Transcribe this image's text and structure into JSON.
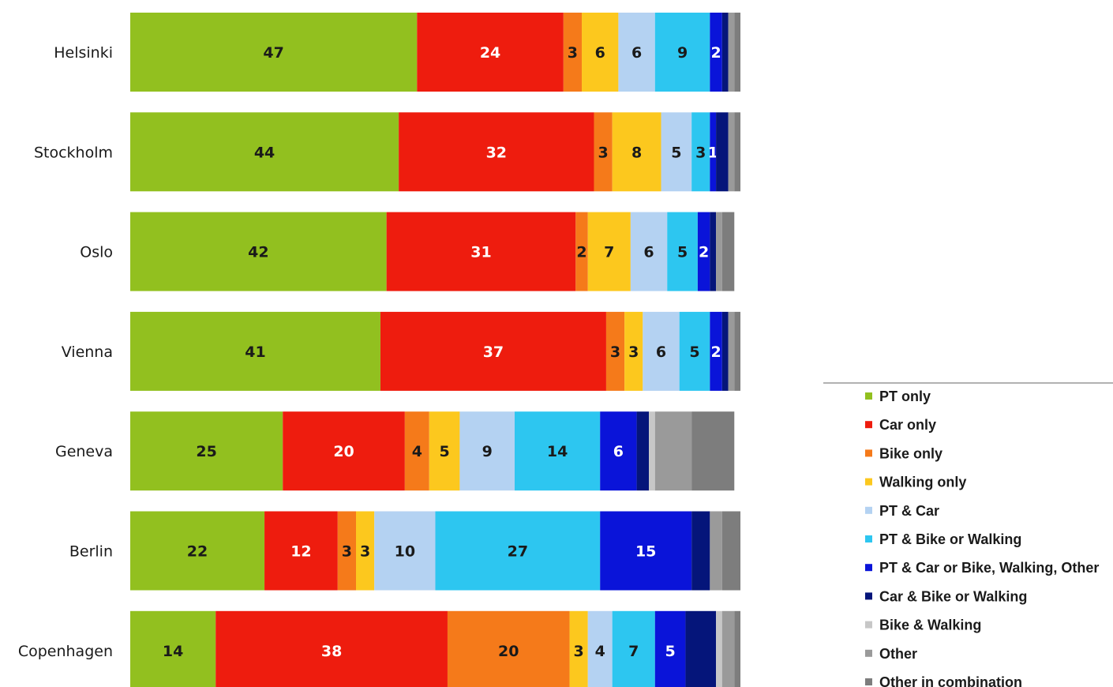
{
  "chart_data": {
    "type": "bar",
    "orientation": "horizontal",
    "stacked": true,
    "title": "",
    "xlabel": "",
    "ylabel": "",
    "xlim": [
      0,
      100
    ],
    "grid": false,
    "legend_position": "bottom-right",
    "categories": [
      "Helsinki",
      "Stockholm",
      "Oslo",
      "Vienna",
      "Geneva",
      "Berlin",
      "Copenhagen"
    ],
    "series": [
      {
        "name": "PT only",
        "color": "#92c01f",
        "values": [
          47,
          44,
          42,
          41,
          25,
          22,
          14
        ],
        "label_color": "#1a1a1a"
      },
      {
        "name": "Car only",
        "color": "#ee1c0e",
        "values": [
          24,
          32,
          31,
          37,
          20,
          12,
          38
        ],
        "label_color": "#ffffff"
      },
      {
        "name": "Bike only",
        "color": "#f57a1a",
        "values": [
          3,
          3,
          2,
          3,
          4,
          3,
          20
        ],
        "label_color": "#1a1a1a"
      },
      {
        "name": "Walking only",
        "color": "#fcc81e",
        "values": [
          6,
          8,
          7,
          3,
          5,
          3,
          3
        ],
        "label_color": "#1a1a1a"
      },
      {
        "name": "PT & Car",
        "color": "#b4d2f2",
        "values": [
          6,
          5,
          6,
          6,
          9,
          10,
          4
        ],
        "label_color": "#1a1a1a"
      },
      {
        "name": "PT & Bike or Walking",
        "color": "#2dc6f0",
        "values": [
          9,
          3,
          5,
          5,
          14,
          27,
          7
        ],
        "label_color": "#1a1a1a"
      },
      {
        "name": "PT & Car or Bike, Walking, Other",
        "color": "#0a14d9",
        "values": [
          2,
          1,
          2,
          2,
          6,
          15,
          5
        ],
        "label_color": "#ffffff"
      },
      {
        "name": "Car & Bike or Walking",
        "color": "#05157a",
        "values": [
          1,
          2,
          1,
          1,
          2,
          3,
          5
        ],
        "label_color": "#ffffff"
      },
      {
        "name": "Bike & Walking",
        "color": "#c7c7c7",
        "values": [
          0,
          0,
          0,
          0,
          1,
          0,
          1
        ],
        "label_color": "#1a1a1a"
      },
      {
        "name": "Other",
        "color": "#9a9a9a",
        "values": [
          1,
          1,
          1,
          1,
          6,
          2,
          2
        ],
        "label_color": "#1a1a1a"
      },
      {
        "name": "Other in combination",
        "color": "#7d7d7d",
        "values": [
          1,
          1,
          2,
          1,
          7,
          3,
          1
        ],
        "label_color": "#1a1a1a"
      }
    ],
    "data_labels": [
      [
        "47",
        "24",
        "3",
        "6",
        "6",
        "9",
        "2",
        "",
        "",
        "",
        ""
      ],
      [
        "44",
        "32",
        "3",
        "8",
        "5",
        "3",
        "1",
        "",
        "",
        "",
        ""
      ],
      [
        "42",
        "31",
        "2",
        "7",
        "6",
        "5",
        "2",
        "",
        "",
        "",
        ""
      ],
      [
        "41",
        "37",
        "3",
        "3",
        "6",
        "5",
        "2",
        "",
        "",
        "",
        ""
      ],
      [
        "25",
        "20",
        "4",
        "5",
        "9",
        "14",
        "6",
        "",
        "",
        "",
        ""
      ],
      [
        "22",
        "12",
        "3",
        "3",
        "10",
        "27",
        "15",
        "",
        "",
        "",
        ""
      ],
      [
        "14",
        "38",
        "20",
        "3",
        "4",
        "7",
        "5",
        "",
        "",
        "",
        ""
      ]
    ]
  }
}
